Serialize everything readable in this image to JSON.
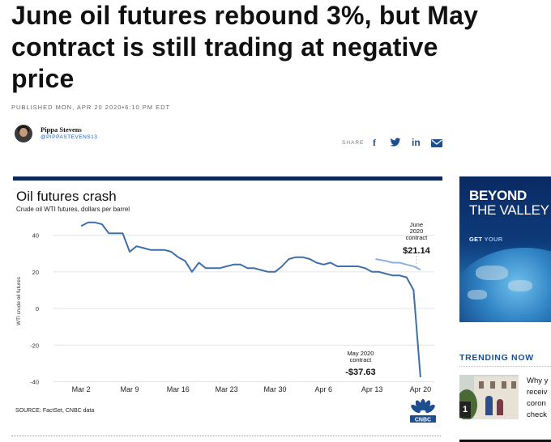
{
  "article": {
    "headline": "June oil futures rebound 3%, but May\ncontract is still trading at negative\nprice",
    "published": "PUBLISHED MON, APR 20 2020•6:10 PM EDT",
    "author_name": "Pippa Stevens",
    "author_handle": "@PIPPASTEVENS13",
    "share_label": "SHARE",
    "share_icons": [
      "facebook-icon",
      "twitter-icon",
      "linkedin-icon",
      "email-icon"
    ]
  },
  "chart_data": {
    "type": "line",
    "title": "Oil futures crash",
    "subtitle": "Crude oil WTI futures, dollars per barrel",
    "ylabel": "WTI crude oil futures",
    "xlabel": "",
    "source": "SOURCE: FactSet, CNBC data",
    "ylim": [
      -42,
      50
    ],
    "yticks": [
      "40",
      "20",
      "0",
      "-20",
      "-40"
    ],
    "ytick_values": [
      40,
      20,
      0,
      -20,
      -40
    ],
    "xticks": [
      "Mar 2",
      "Mar 9",
      "Mar 16",
      "Mar 23",
      "Mar 30",
      "Apr 6",
      "Apr 13",
      "Apr 20"
    ],
    "xtick_values": [
      0,
      7,
      14,
      21,
      28,
      35,
      42,
      49
    ],
    "grid": true,
    "legend": "none",
    "series": [
      {
        "values": [
          {
            "x": 0,
            "y": 45
          },
          {
            "x": 1,
            "y": 47
          },
          {
            "x": 2,
            "y": 47
          },
          {
            "x": 3,
            "y": 46
          },
          {
            "x": 4,
            "y": 41
          },
          {
            "x": 5,
            "y": 41
          },
          {
            "x": 6,
            "y": 41
          },
          {
            "x": 7,
            "y": 31
          },
          {
            "x": 8,
            "y": 34
          },
          {
            "x": 9,
            "y": 33
          },
          {
            "x": 10,
            "y": 32
          },
          {
            "x": 11,
            "y": 32
          },
          {
            "x": 12,
            "y": 32
          },
          {
            "x": 13,
            "y": 31
          },
          {
            "x": 14,
            "y": 28
          },
          {
            "x": 15,
            "y": 26
          },
          {
            "x": 16,
            "y": 20
          },
          {
            "x": 17,
            "y": 25
          },
          {
            "x": 18,
            "y": 22
          },
          {
            "x": 19,
            "y": 22
          },
          {
            "x": 20,
            "y": 22
          },
          {
            "x": 21,
            "y": 23
          },
          {
            "x": 22,
            "y": 24
          },
          {
            "x": 23,
            "y": 24
          },
          {
            "x": 24,
            "y": 22
          },
          {
            "x": 25,
            "y": 22
          },
          {
            "x": 26,
            "y": 21
          },
          {
            "x": 27,
            "y": 20
          },
          {
            "x": 28,
            "y": 20
          },
          {
            "x": 29,
            "y": 23
          },
          {
            "x": 30,
            "y": 27
          },
          {
            "x": 31,
            "y": 28
          },
          {
            "x": 32,
            "y": 28
          },
          {
            "x": 33,
            "y": 27
          },
          {
            "x": 34,
            "y": 25
          },
          {
            "x": 35,
            "y": 24
          },
          {
            "x": 36,
            "y": 25
          },
          {
            "x": 37,
            "y": 23
          },
          {
            "x": 38,
            "y": 23
          },
          {
            "x": 39,
            "y": 23
          },
          {
            "x": 40,
            "y": 23
          },
          {
            "x": 41,
            "y": 22
          },
          {
            "x": 42,
            "y": 20
          },
          {
            "x": 43,
            "y": 20
          },
          {
            "x": 44,
            "y": 19
          },
          {
            "x": 45,
            "y": 18
          },
          {
            "x": 46,
            "y": 18
          },
          {
            "x": 47,
            "y": 17
          },
          {
            "x": 48,
            "y": 10
          },
          {
            "x": 49,
            "y": -37.63
          }
        ],
        "color": "#3e6fa8"
      },
      {
        "values": [
          {
            "x": 42.5,
            "y": 27
          },
          {
            "x": 44,
            "y": 26
          },
          {
            "x": 45,
            "y": 25
          },
          {
            "x": 46,
            "y": 25
          },
          {
            "x": 47,
            "y": 24
          },
          {
            "x": 48,
            "y": 23
          },
          {
            "x": 49,
            "y": 21.14
          }
        ],
        "color": "#8fb1d6"
      }
    ],
    "annotations": [
      {
        "lines": [
          "June",
          "2020",
          "contract"
        ],
        "value": "$21.14",
        "x": 49,
        "y": 21.14
      },
      {
        "lines": [
          "May 2020",
          "contract"
        ],
        "value": "-$37.63",
        "x": 49,
        "y": -37.63
      }
    ]
  },
  "promo": {
    "line1": "BEYOND",
    "line2": "THE VALLEY",
    "cta_a": "GET ",
    "cta_b": "YOUR"
  },
  "trending": {
    "title": "TRENDING NOW",
    "items": [
      {
        "rank": "1",
        "text": "Why y\nreceiv\ncoron\ncheck"
      }
    ]
  },
  "colors": {
    "chart_topbar": "#0b2a5b",
    "share_icons": "#1d4e8f",
    "trending_title": "#1d4e8f"
  }
}
